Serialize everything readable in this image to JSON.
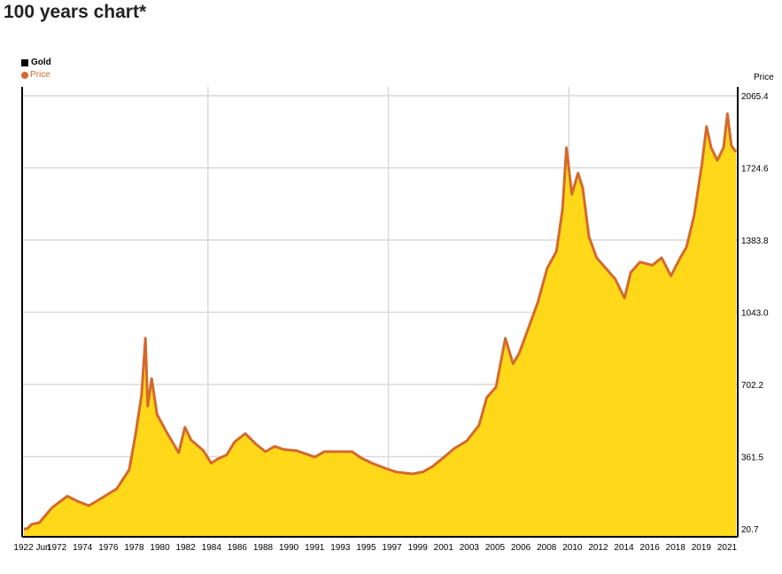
{
  "title": "100 years chart*",
  "legend": {
    "series_label": "Gold",
    "item_label": "Price"
  },
  "colors": {
    "fill": "#ffd819",
    "line": "#d4692d",
    "grid": "#d9d9d9",
    "axis": "#000000"
  },
  "chart_data": {
    "type": "area",
    "title": "100 years chart*",
    "ylabel": "Price",
    "ylim": [
      20.7,
      2065.4
    ],
    "y_ticks": [
      "20.7",
      "361.5",
      "702.2",
      "1043.0",
      "1383.8",
      "1724.6",
      "2065.4"
    ],
    "x_ticks": [
      "1922 Jun",
      "1972",
      "1974",
      "1976",
      "1978",
      "1980",
      "1982",
      "1984",
      "1986",
      "1988",
      "1990",
      "1991",
      "1993",
      "1995",
      "1997",
      "1999",
      "2001",
      "2003",
      "2005",
      "2006",
      "2008",
      "2010",
      "2012",
      "2014",
      "2016",
      "2018",
      "2019",
      "2021"
    ],
    "grid": "vertical every 7th tick, horizontal at y ticks",
    "legend_position": "top-left",
    "series": [
      {
        "name": "Price",
        "values": [
          [
            0,
            20.7
          ],
          [
            0.2,
            20.7
          ],
          [
            0.5,
            42
          ],
          [
            1.0,
            50
          ],
          [
            1.8,
            120
          ],
          [
            2.8,
            175
          ],
          [
            3.5,
            150
          ],
          [
            4.2,
            130
          ],
          [
            5.0,
            165
          ],
          [
            6.0,
            210
          ],
          [
            6.8,
            300
          ],
          [
            7.2,
            460
          ],
          [
            7.6,
            650
          ],
          [
            7.85,
            920
          ],
          [
            8.0,
            600
          ],
          [
            8.25,
            730
          ],
          [
            8.6,
            560
          ],
          [
            9.2,
            480
          ],
          [
            10.0,
            380
          ],
          [
            10.4,
            500
          ],
          [
            10.8,
            440
          ],
          [
            11.6,
            390
          ],
          [
            12.1,
            330
          ],
          [
            12.5,
            350
          ],
          [
            13.1,
            370
          ],
          [
            13.6,
            430
          ],
          [
            14.3,
            470
          ],
          [
            15.0,
            420
          ],
          [
            15.6,
            385
          ],
          [
            16.2,
            410
          ],
          [
            16.8,
            395
          ],
          [
            17.6,
            390
          ],
          [
            18.2,
            375
          ],
          [
            18.8,
            360
          ],
          [
            19.4,
            385
          ],
          [
            20.2,
            385
          ],
          [
            21.2,
            385
          ],
          [
            21.8,
            355
          ],
          [
            22.5,
            330
          ],
          [
            23.4,
            305
          ],
          [
            24.0,
            290
          ],
          [
            24.5,
            285
          ],
          [
            25.1,
            280
          ],
          [
            25.8,
            290
          ],
          [
            26.4,
            315
          ],
          [
            27.0,
            350
          ],
          [
            27.8,
            400
          ],
          [
            28.6,
            435
          ],
          [
            29.4,
            510
          ],
          [
            29.9,
            640
          ],
          [
            30.5,
            690
          ],
          [
            31.1,
            920
          ],
          [
            31.6,
            800
          ],
          [
            32.0,
            850
          ],
          [
            32.6,
            970
          ],
          [
            33.2,
            1090
          ],
          [
            33.8,
            1250
          ],
          [
            34.4,
            1330
          ],
          [
            34.8,
            1530
          ],
          [
            35.05,
            1820
          ],
          [
            35.4,
            1600
          ],
          [
            35.8,
            1700
          ],
          [
            36.1,
            1630
          ],
          [
            36.5,
            1400
          ],
          [
            37.0,
            1300
          ],
          [
            37.6,
            1250
          ],
          [
            38.2,
            1200
          ],
          [
            38.8,
            1110
          ],
          [
            39.2,
            1230
          ],
          [
            39.8,
            1280
          ],
          [
            40.6,
            1265
          ],
          [
            41.2,
            1300
          ],
          [
            41.8,
            1215
          ],
          [
            42.4,
            1300
          ],
          [
            42.8,
            1350
          ],
          [
            43.3,
            1500
          ],
          [
            43.8,
            1740
          ],
          [
            44.1,
            1920
          ],
          [
            44.4,
            1820
          ],
          [
            44.8,
            1760
          ],
          [
            45.2,
            1820
          ],
          [
            45.45,
            1980
          ],
          [
            45.7,
            1830
          ],
          [
            46.0,
            1800
          ]
        ]
      }
    ]
  }
}
